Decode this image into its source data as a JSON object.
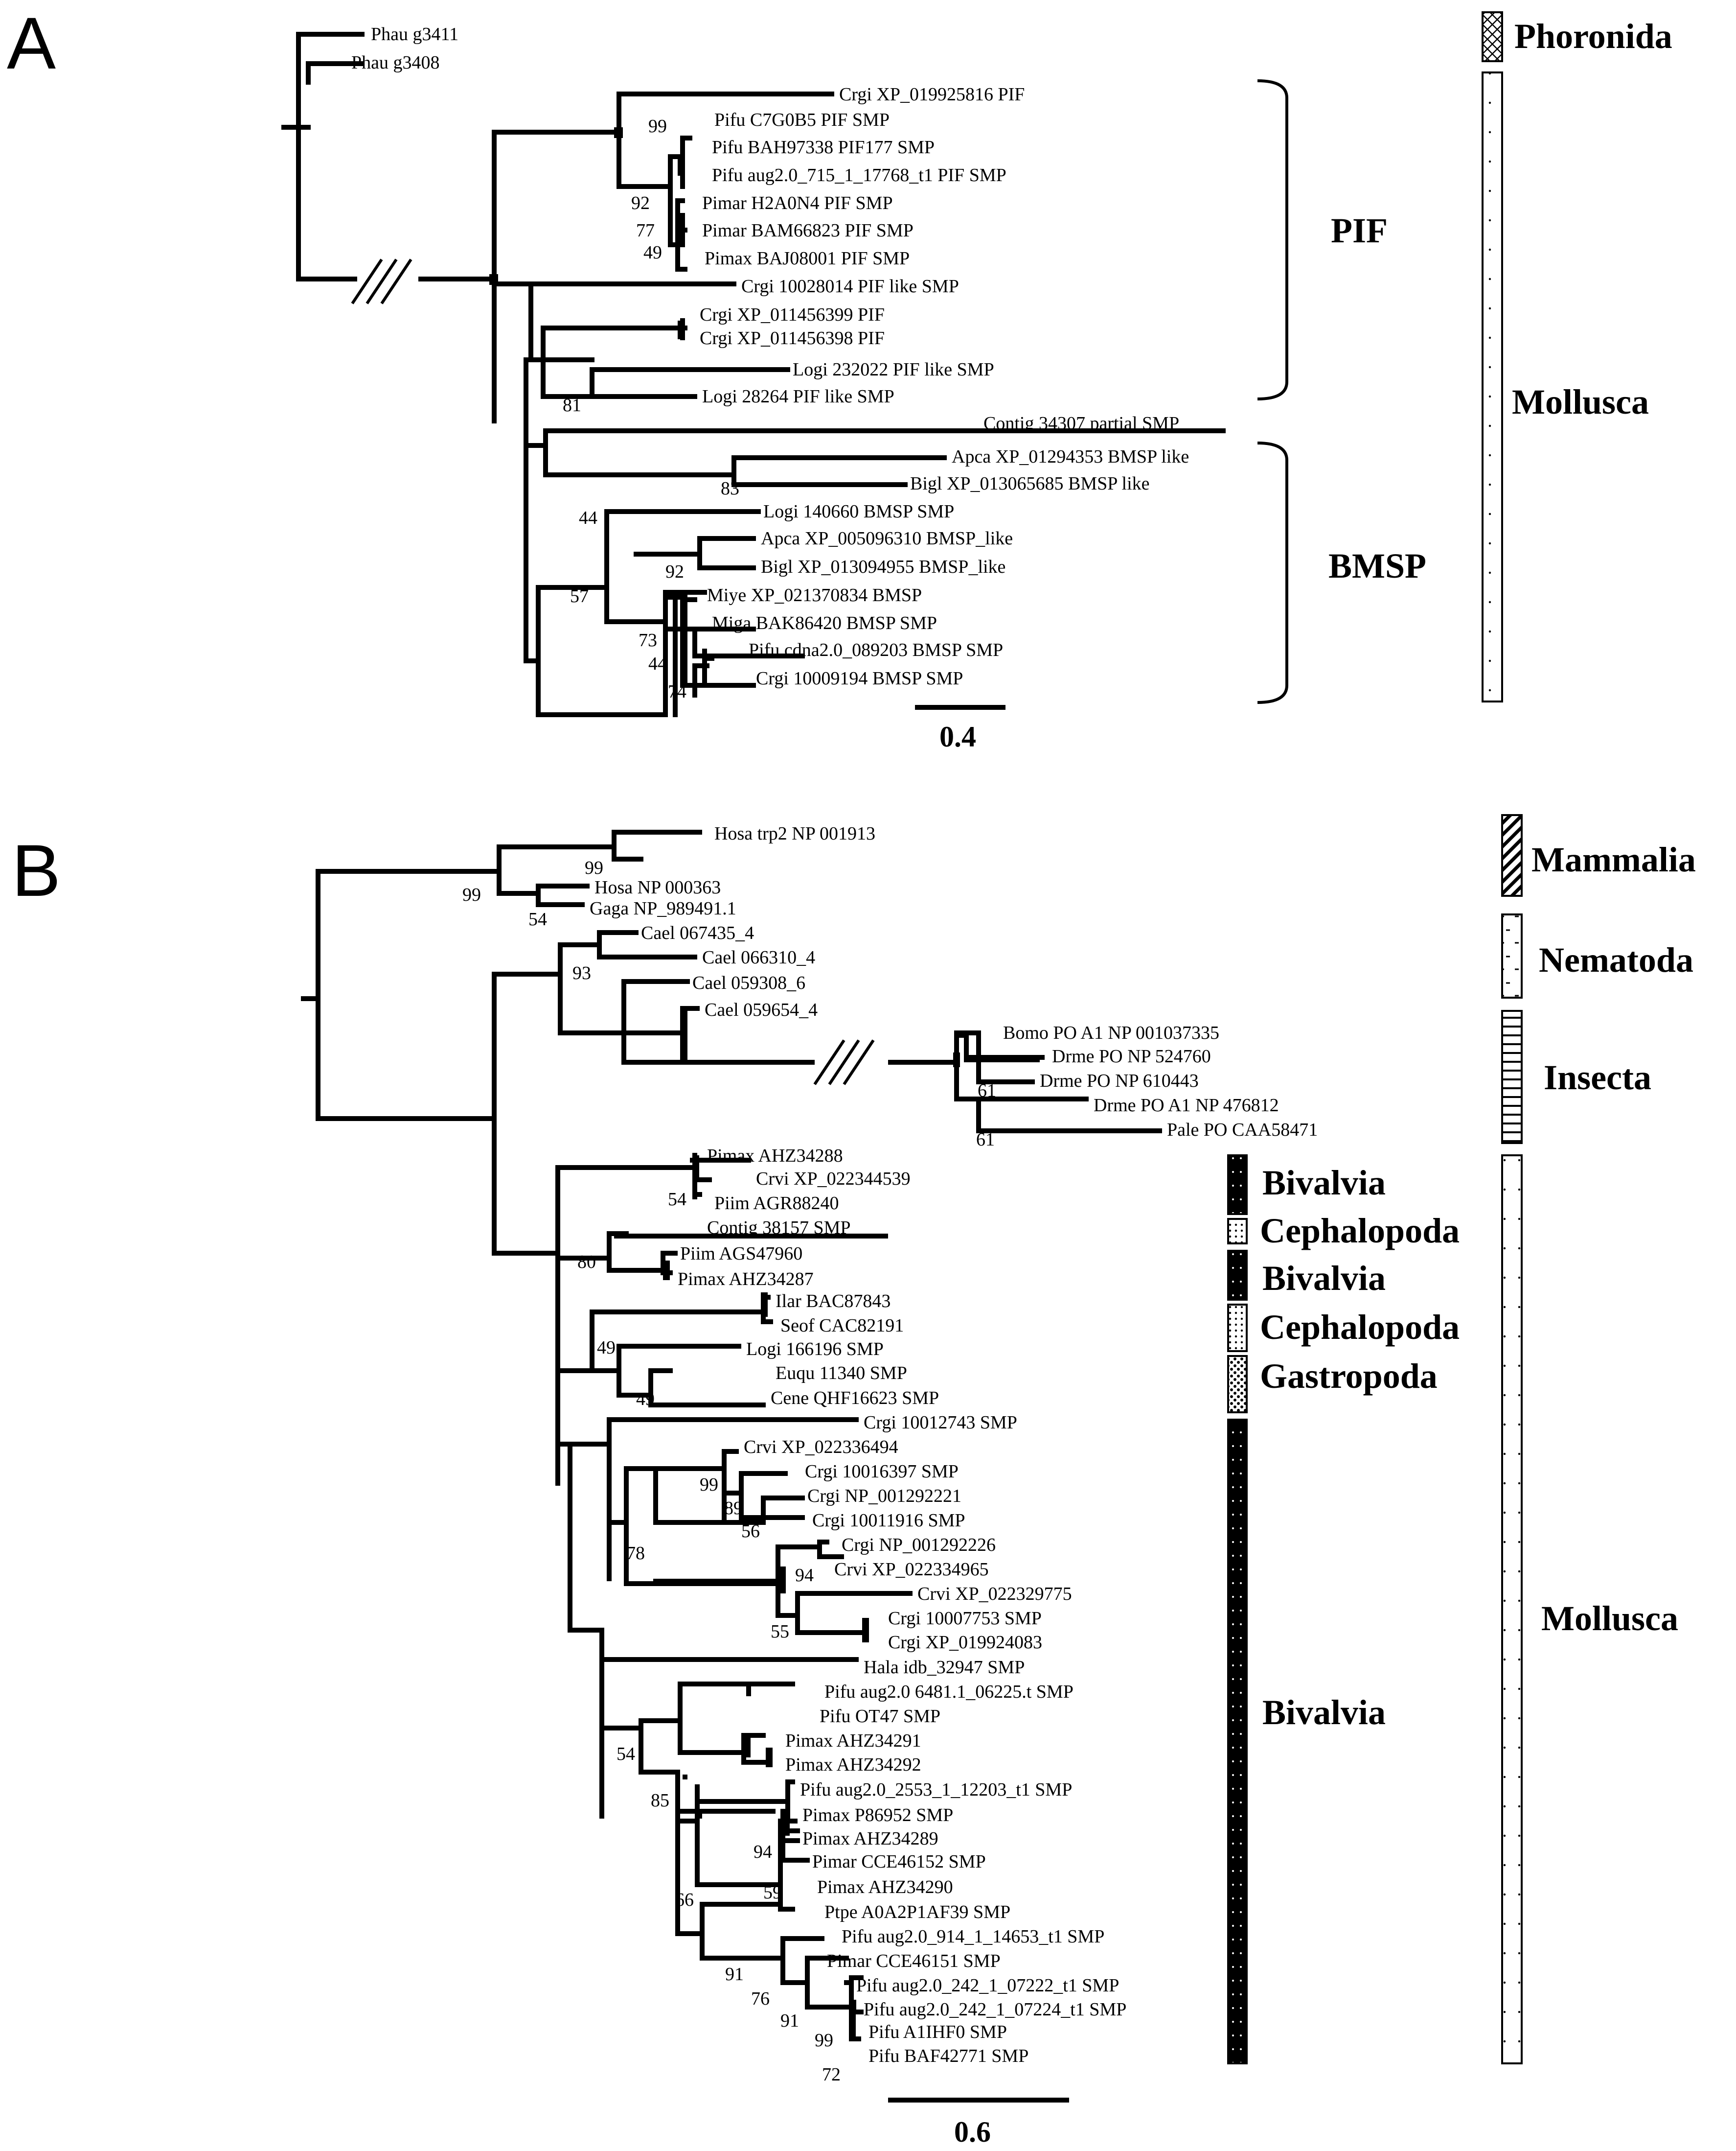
{
  "panelA": {
    "label": "A",
    "leaves": [
      "Phau g3411",
      "Phau g3408",
      "Crgi XP_019925816 PIF",
      "Pifu C7G0B5 PIF SMP",
      "Pifu BAH97338 PIF177 SMP",
      "Pifu aug2.0_715_1_17768_t1 PIF SMP",
      "Pimar H2A0N4 PIF SMP",
      "Pimar BAM66823 PIF SMP",
      "Pimax BAJ08001 PIF SMP",
      "Crgi 10028014  PIF like SMP",
      "Crgi XP_011456399 PIF",
      "Crgi XP_011456398 PIF",
      "Logi 232022 PIF like SMP",
      "Logi 28264 PIF like SMP",
      "Contig 34307 partial SMP",
      "Apca XP_01294353 BMSP like",
      "Bigl XP_013065685 BMSP like",
      "Logi 140660 BMSP SMP",
      "Apca XP_005096310 BMSP_like",
      "Bigl XP_013094955 BMSP_like",
      "Miye XP_021370834 BMSP",
      "Miga BAK86420 BMSP SMP",
      "Pifu cdna2.0_089203 BMSP SMP",
      "Crgi 10009194 BMSP SMP"
    ],
    "bootstraps": [
      "99",
      "92",
      "77",
      "49",
      "81",
      "83",
      "44",
      "92",
      "57",
      "73",
      "44",
      "74"
    ],
    "clades": {
      "pif": "PIF",
      "bmsp": "BMSP"
    },
    "taxa": {
      "phoronida": "Phoronida",
      "mollusca": "Mollusca"
    },
    "scale": "0.4"
  },
  "panelB": {
    "label": "B",
    "leaves": [
      "Hosa trp2 NP 001913",
      "Hosa NP 000363",
      "Gaga NP_989491.1",
      "Cael 067435_4",
      "Cael 066310_4",
      "Cael 059308_6",
      "Cael 059654_4",
      "Bomo PO A1 NP 001037335",
      "Drme PO NP 524760",
      "Drme PO NP 610443",
      "Drme PO A1 NP 476812",
      "Pale PO CAA58471",
      "Pimax AHZ34288",
      "Crvi XP_022344539",
      "Piim AGR88240",
      "Contig 38157 SMP",
      "Piim AGS47960",
      "Pimax AHZ34287",
      "Ilar BAC87843",
      "Seof CAC82191",
      "Logi 166196 SMP",
      "Euqu 11340 SMP",
      "Cene QHF16623 SMP",
      "Crgi 10012743 SMP",
      "Crvi XP_022336494",
      "Crgi 10016397 SMP",
      "Crgi NP_001292221",
      "Crgi 10011916 SMP",
      "Crgi NP_001292226",
      "Crvi XP_022334965",
      "Crvi XP_022329775",
      "Crgi 10007753 SMP",
      "Crgi XP_019924083",
      "Hala idb_32947 SMP",
      "Pifu aug2.0 6481.1_06225.t SMP",
      "Pifu OT47 SMP",
      "Pimax AHZ34291",
      "Pimax AHZ34292",
      "Pifu aug2.0_2553_1_12203_t1 SMP",
      "Pimax P86952 SMP",
      "Pimax AHZ34289",
      "Pimar CCE46152 SMP",
      "Pimax AHZ34290",
      "Ptpe A0A2P1AF39 SMP",
      "Pifu aug2.0_914_1_14653_t1 SMP",
      "Pimar CCE46151 SMP",
      "Pifu aug2.0_242_1_07222_t1 SMP",
      "Pifu aug2.0_242_1_07224_t1 SMP",
      "Pifu A1IHF0 SMP",
      "Pifu BAF42771 SMP"
    ],
    "bootstraps": [
      "99",
      "99",
      "54",
      "93",
      "61",
      "61",
      "54",
      "80",
      "49",
      "49",
      "99",
      "89",
      "56",
      "78",
      "94",
      "55",
      "54",
      "85",
      "94",
      "59",
      "66",
      "91",
      "76",
      "91",
      "99",
      "72"
    ],
    "groups": {
      "bivalvia1": "Bivalvia",
      "cephalopoda1": "Cephalopoda",
      "bivalvia2": "Bivalvia",
      "cephalopoda2": "Cephalopoda",
      "gastropoda": "Gastropoda",
      "bivalvia3": "Bivalvia"
    },
    "taxa": {
      "mammalia": "Mammalia",
      "nematoda": "Nematoda",
      "insecta": "Insecta",
      "mollusca": "Mollusca"
    },
    "scale": "0.6"
  }
}
